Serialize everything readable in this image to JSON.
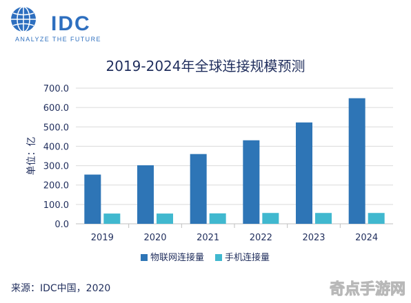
{
  "header": {
    "logo_text": "IDC",
    "logo_tagline": "ANALYZE THE FUTURE",
    "brand_color": "#2e6fbf"
  },
  "chart_data": {
    "type": "bar",
    "title": "2019-2024年全球连接规模预测",
    "ylabel": "单位：亿",
    "xlabel": "",
    "categories": [
      "2019",
      "2020",
      "2021",
      "2022",
      "2023",
      "2024"
    ],
    "ylim": [
      0,
      700
    ],
    "yticks": [
      0,
      100,
      200,
      300,
      400,
      500,
      600,
      700
    ],
    "ytick_labels": [
      "0.0",
      "100.0",
      "200.0",
      "300.0",
      "400.0",
      "500.0",
      "600.0",
      "700.0"
    ],
    "grid": true,
    "legend_position": "bottom-center",
    "series": [
      {
        "name": "物联网连接量",
        "color": "#2e75b6",
        "values": [
          254,
          302,
          360,
          431,
          523,
          648
        ]
      },
      {
        "name": "手机连接量",
        "color": "#40b8cf",
        "values": [
          53,
          53,
          54,
          56,
          56,
          56
        ]
      }
    ]
  },
  "footer": {
    "source": "来源：IDC中国，2020"
  },
  "watermark": {
    "text": "奇点手游网"
  }
}
